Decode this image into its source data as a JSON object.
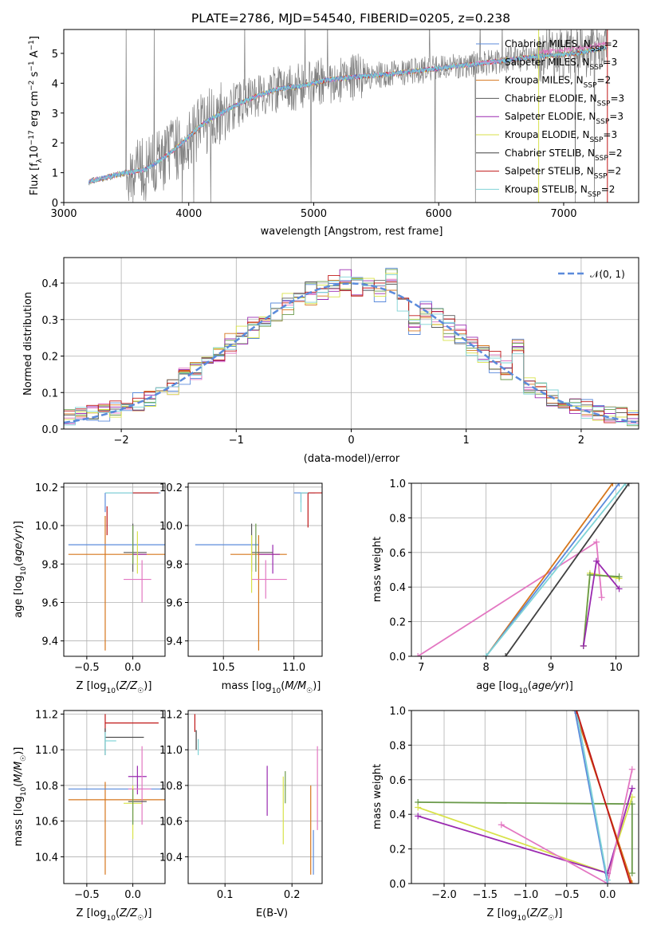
{
  "title": "PLATE=2786, MJD=54540, FIBERID=0205, z=0.238",
  "colors": {
    "chabrier_miles": "#5b8bdb",
    "salpeter_miles": "#e377c2",
    "kroupa_miles": "#d6761c",
    "chabrier_elodie": "#5a5a5a",
    "salpeter_elodie": "#9a2ab0",
    "kroupa_elodie": "#d8e24a",
    "chabrier_stelib": "#404040",
    "salpeter_stelib": "#c01818",
    "kroupa_stelib": "#7fd3d6",
    "extra_green": "#6a9a4a",
    "gauss": "#5b8bdb",
    "grid": "#b0b0b0"
  },
  "legend_spectrum": [
    "Chabrier MILES, N",
    "Salpeter MILES, N",
    "Kroupa MILES, N",
    "Chabrier ELODIE, N",
    "Salpeter ELODIE, N",
    "Kroupa ELODIE, N",
    "Chabrier STELIB, N",
    "Salpeter STELIB, N",
    "Kroupa STELIB, N"
  ],
  "legend_nssp": [
    "2",
    "3",
    "2",
    "3",
    "3",
    "3",
    "2",
    "2",
    "2"
  ],
  "chart_data": [
    {
      "type": "line",
      "title": "PLATE=2786, MJD=54540, FIBERID=0205, z=0.238",
      "xlabel": "wavelength [Angstrom, rest frame]",
      "ylabel": "Flux [f_λ 10^-17 erg cm^-2 s^-1 A^-1]",
      "xlim": [
        3000,
        7600
      ],
      "ylim": [
        0,
        5.8
      ],
      "xticks": [
        3000,
        4000,
        5000,
        6000,
        7000
      ],
      "yticks": [
        0,
        1,
        2,
        3,
        4,
        5
      ],
      "data_x_range": [
        3200,
        7350
      ],
      "model_anchor_x": [
        3200,
        3500,
        3650,
        3800,
        3950,
        4100,
        4300,
        4500,
        4700,
        4900,
        5100,
        5300,
        5600,
        6000,
        6400,
        6800,
        7100,
        7350
      ],
      "model_anchor_y": [
        0.7,
        1.0,
        1.1,
        1.5,
        2.0,
        2.6,
        3.1,
        3.5,
        3.8,
        3.9,
        4.1,
        4.2,
        4.3,
        4.5,
        4.7,
        4.9,
        5.0,
        5.2
      ],
      "legend": [
        "Chabrier MILES, N_SSP=2",
        "Salpeter MILES, N_SSP=3",
        "Kroupa MILES, N_SSP=2",
        "Chabrier ELODIE, N_SSP=3",
        "Salpeter ELODIE, N_SSP=3",
        "Kroupa ELODIE, N_SSP=3",
        "Chabrier STELIB, N_SSP=2",
        "Salpeter STELIB, N_SSP=2",
        "Kroupa STELIB, N_SSP=2"
      ],
      "grid": false
    },
    {
      "type": "line",
      "xlabel": "(data-model)/error",
      "ylabel": "Normed distribution",
      "xlim": [
        -2.5,
        2.5
      ],
      "ylim": [
        0,
        0.47
      ],
      "xticks": [
        -2,
        -1,
        0,
        1,
        2
      ],
      "yticks": [
        0.0,
        0.1,
        0.2,
        0.3,
        0.4
      ],
      "gauss_label": "𝒩(0, 1)",
      "legend_position": "top-right",
      "grid": true,
      "series_count": 9
    },
    {
      "type": "scatter",
      "xlabel": "Z [log10(Z/Z☉)]",
      "ylabel": "age [log10(age/yr)]",
      "xlim": [
        -0.75,
        0.35
      ],
      "ylim": [
        9.32,
        10.22
      ],
      "xticks": [
        -0.5,
        0.0
      ],
      "yticks": [
        9.4,
        9.6,
        9.8,
        10.0,
        10.2
      ],
      "grid": true
    },
    {
      "type": "scatter",
      "xlabel": "mass [log10(M/M☉)]",
      "ylabel": "",
      "xlim": [
        10.25,
        11.2
      ],
      "ylim": [
        9.32,
        10.22
      ],
      "xticks": [
        10.5,
        11.0
      ],
      "yticks": [
        9.4,
        9.6,
        9.8,
        10.0,
        10.2
      ],
      "grid": true
    },
    {
      "type": "line",
      "xlabel": "age [log10(age/yr)]",
      "ylabel": "mass weight",
      "xlim": [
        6.85,
        10.35
      ],
      "ylim": [
        0,
        1.0
      ],
      "xticks": [
        7,
        8,
        9,
        10
      ],
      "yticks": [
        0.0,
        0.2,
        0.4,
        0.6,
        0.8,
        1.0
      ],
      "grid": true
    },
    {
      "type": "scatter",
      "xlabel": "Z [log10(Z/Z☉)]",
      "ylabel": "mass [log10(M/M☉)]",
      "xlim": [
        -0.75,
        0.35
      ],
      "ylim": [
        10.25,
        11.22
      ],
      "xticks": [
        -0.5,
        0.0
      ],
      "yticks": [
        10.4,
        10.6,
        10.8,
        11.0,
        11.2
      ],
      "grid": true
    },
    {
      "type": "scatter",
      "xlabel": "E(B-V)",
      "ylabel": "",
      "xlim": [
        0.045,
        0.245
      ],
      "ylim": [
        10.25,
        11.22
      ],
      "xticks": [
        0.1,
        0.2
      ],
      "yticks": [
        10.4,
        10.6,
        10.8,
        11.0,
        11.2
      ],
      "grid": true
    },
    {
      "type": "line",
      "xlabel": "Z [log10(Z/Z☉)]",
      "ylabel": "mass weight",
      "xlim": [
        -2.4,
        0.38
      ],
      "ylim": [
        0,
        1.0
      ],
      "xticks": [
        -2.0,
        -1.5,
        -1.0,
        -0.5,
        0.0
      ],
      "yticks": [
        0.0,
        0.2,
        0.4,
        0.6,
        0.8,
        1.0
      ],
      "grid": true
    }
  ]
}
